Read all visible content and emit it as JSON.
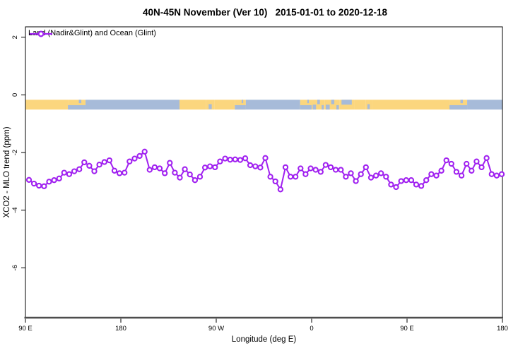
{
  "colors": {
    "series": "#A020F0",
    "land": "#FBD67E",
    "ocean": "#A7BBD9",
    "axis_line": "#4d4d4d",
    "box": "#000000",
    "text": "#000000",
    "background": "#ffffff"
  },
  "chart_data": {
    "type": "line",
    "title": "40N-45N November (Ver 10)   2015-01-01 to 2020-12-18",
    "xlabel": "Longitude (deg E)",
    "ylabel": "XCO2 - MLO trend (ppm)",
    "grid": false,
    "legend_position": "top-left",
    "x_axis": {
      "range_deg": [
        90,
        540
      ],
      "tick_positions_deg": [
        90,
        180,
        270,
        360,
        450,
        540
      ],
      "tick_labels": [
        "90 E",
        "180",
        "90 W",
        "0",
        "90 E",
        "180"
      ]
    },
    "ylim": [
      -7.73,
      2.36
    ],
    "y_ticks": {
      "values": [
        2,
        0,
        -2,
        -4,
        -6
      ],
      "labels": [
        "2",
        "0",
        "-2",
        "-4",
        "-6"
      ]
    },
    "series": [
      {
        "name": "Land (Nadir&Glint) and Ocean (Glint)",
        "color": "#A020F0",
        "marker": "open-circle",
        "x_start_deg": 93.3,
        "x_step_deg": 4.752,
        "values": [
          -2.95,
          -3.08,
          -3.15,
          -3.17,
          -3.01,
          -2.96,
          -2.9,
          -2.7,
          -2.75,
          -2.65,
          -2.58,
          -2.34,
          -2.46,
          -2.65,
          -2.42,
          -2.33,
          -2.27,
          -2.63,
          -2.72,
          -2.7,
          -2.31,
          -2.21,
          -2.12,
          -1.97,
          -2.6,
          -2.51,
          -2.55,
          -2.72,
          -2.36,
          -2.7,
          -2.87,
          -2.58,
          -2.76,
          -2.96,
          -2.84,
          -2.52,
          -2.48,
          -2.51,
          -2.31,
          -2.21,
          -2.25,
          -2.24,
          -2.26,
          -2.2,
          -2.44,
          -2.48,
          -2.52,
          -2.19,
          -2.84,
          -3.0,
          -3.28,
          -2.51,
          -2.84,
          -2.84,
          -2.55,
          -2.75,
          -2.55,
          -2.6,
          -2.67,
          -2.43,
          -2.51,
          -2.6,
          -2.6,
          -2.84,
          -2.72,
          -2.99,
          -2.75,
          -2.51,
          -2.87,
          -2.8,
          -2.72,
          -2.84,
          -3.11,
          -3.2,
          -2.99,
          -2.96,
          -2.96,
          -3.11,
          -3.16,
          -2.96,
          -2.75,
          -2.8,
          -2.63,
          -2.27,
          -2.39,
          -2.67,
          -2.8,
          -2.39,
          -2.63,
          -2.31,
          -2.51,
          -2.19,
          -2.75,
          -2.8,
          -2.75
        ]
      }
    ],
    "map_band": {
      "y_top": -0.17,
      "y_bottom": -0.51,
      "land_color": "#FBD67E",
      "ocean_color": "#A7BBD9",
      "segments": [
        {
          "f0": 0.0,
          "f1": 0.089,
          "type": "land"
        },
        {
          "f0": 0.089,
          "f1": 0.126,
          "type": "coast_tl"
        },
        {
          "f0": 0.126,
          "f1": 0.323,
          "type": "ocean"
        },
        {
          "f0": 0.323,
          "f1": 0.379,
          "type": "land"
        },
        {
          "f0": 0.379,
          "f1": 0.396,
          "type": "mix_land"
        },
        {
          "f0": 0.396,
          "f1": 0.439,
          "type": "land"
        },
        {
          "f0": 0.439,
          "f1": 0.462,
          "type": "coast_tl"
        },
        {
          "f0": 0.462,
          "f1": 0.576,
          "type": "ocean"
        },
        {
          "f0": 0.576,
          "f1": 0.6,
          "type": "coast_tl"
        },
        {
          "f0": 0.6,
          "f1": 0.627,
          "type": "mix"
        },
        {
          "f0": 0.627,
          "f1": 0.659,
          "type": "mix"
        },
        {
          "f0": 0.659,
          "f1": 0.689,
          "type": "coast_to"
        },
        {
          "f0": 0.689,
          "f1": 0.713,
          "type": "land"
        },
        {
          "f0": 0.713,
          "f1": 0.726,
          "type": "mix_land"
        },
        {
          "f0": 0.726,
          "f1": 0.889,
          "type": "land"
        },
        {
          "f0": 0.889,
          "f1": 0.926,
          "type": "coast_tl"
        },
        {
          "f0": 0.926,
          "f1": 1.0,
          "type": "ocean"
        }
      ]
    }
  }
}
